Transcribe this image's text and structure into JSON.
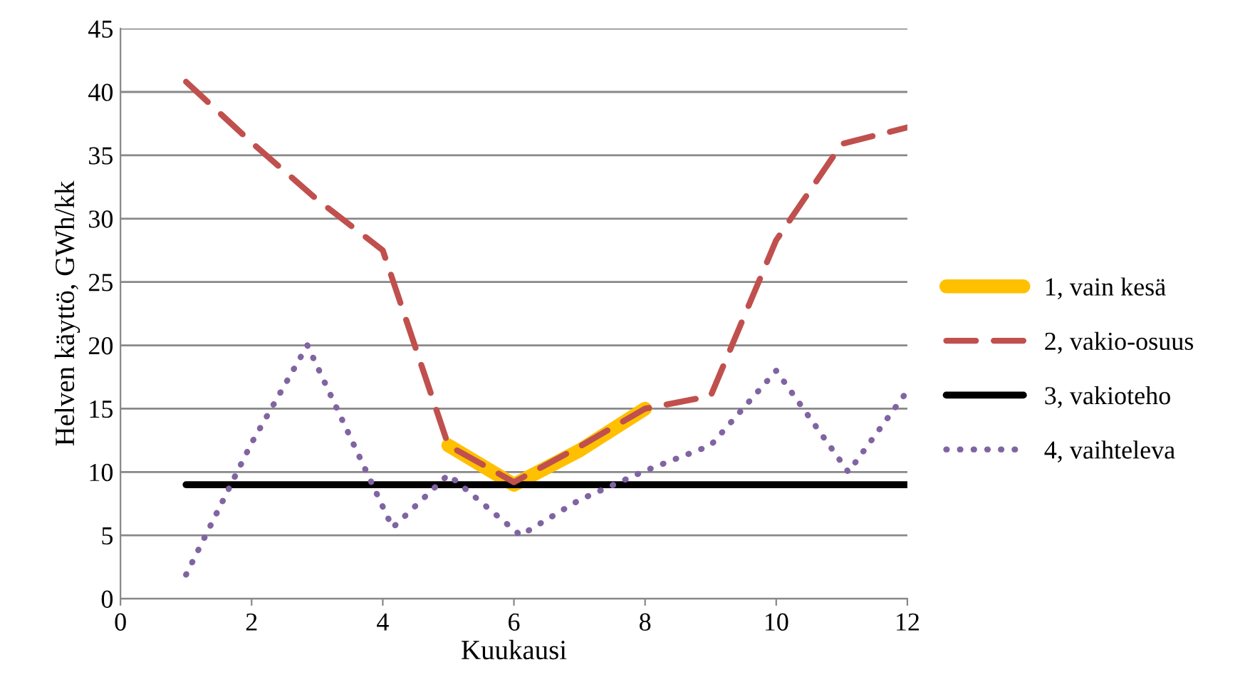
{
  "chart_data": {
    "type": "line",
    "xlabel": "Kuukausi",
    "ylabel": "Helven käyttö, GWh/kk",
    "xlim": [
      0,
      12
    ],
    "xticks": [
      0,
      2,
      4,
      6,
      8,
      10,
      12
    ],
    "ylim": [
      0,
      45
    ],
    "yticks": [
      0,
      5,
      10,
      15,
      20,
      25,
      30,
      35,
      40,
      45
    ],
    "grid": "y",
    "legend": "right",
    "marker": "none",
    "series": [
      {
        "name": "1, vain kesä",
        "color": "#ffc000",
        "line_style": "solid",
        "x": [
          5,
          6,
          7,
          8
        ],
        "values": [
          12.1,
          9.0,
          11.7,
          15.0
        ]
      },
      {
        "name": "2, vakio-osuus",
        "color": "#c0504d",
        "line_style": "dashed",
        "x": [
          1,
          2,
          3,
          4,
          5,
          6,
          7,
          8,
          9,
          10,
          11,
          12
        ],
        "values": [
          40.8,
          36,
          31.5,
          27.5,
          12.1,
          9.2,
          12,
          15,
          16,
          28.3,
          35.9,
          37.2
        ]
      },
      {
        "name": "3, vakioteho",
        "color": "#000000",
        "line_style": "solid",
        "x": [
          1,
          12
        ],
        "values": [
          9,
          9
        ]
      },
      {
        "name": "4, vaihteleva",
        "color": "#8064a2",
        "line_style": "dotted",
        "x": [
          1,
          2,
          2.85,
          4.15,
          5,
          6.1,
          7,
          8,
          9,
          10,
          11.1,
          12
        ],
        "values": [
          1.9,
          12.3,
          20,
          5.6,
          9.8,
          5,
          7.8,
          10.1,
          12.1,
          18,
          10,
          16.4
        ]
      }
    ]
  }
}
